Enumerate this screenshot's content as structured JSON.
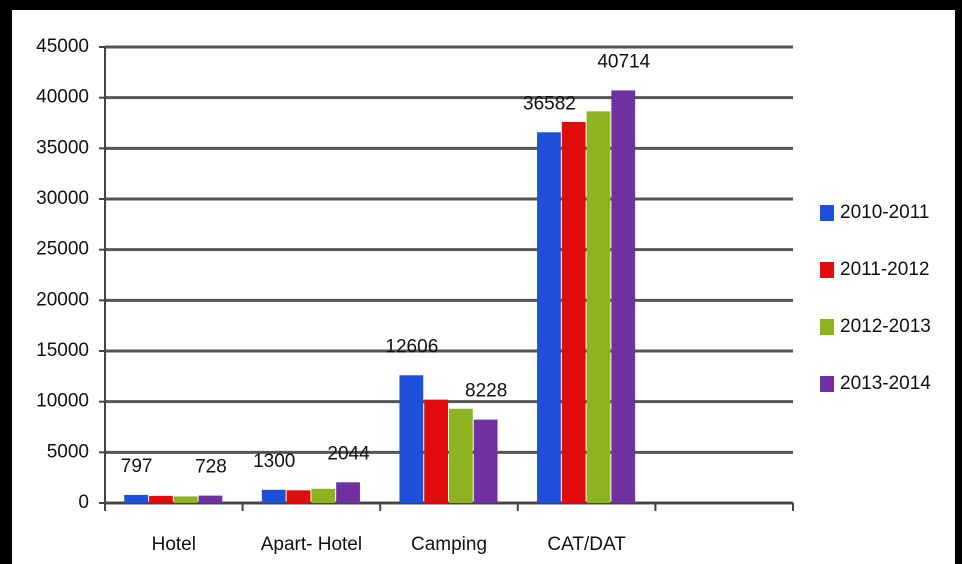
{
  "chart_data": {
    "type": "bar",
    "categories": [
      "Hotel",
      "Apart- Hotel",
      "Camping",
      "CAT/DAT",
      null
    ],
    "series": [
      {
        "name": "2010-2011",
        "color": "#1d4fd8",
        "values": [
          797,
          1300,
          12606,
          36582,
          null
        ],
        "value_labels": [
          "797",
          "1300",
          "12606",
          "36582",
          null
        ]
      },
      {
        "name": "2011-2012",
        "color": "#e10b0b",
        "values": [
          700,
          1250,
          10200,
          37600,
          null
        ],
        "value_labels": [
          null,
          null,
          null,
          null,
          null
        ]
      },
      {
        "name": "2012-2013",
        "color": "#8db320",
        "values": [
          650,
          1400,
          9300,
          38650,
          null
        ],
        "value_labels": [
          null,
          null,
          null,
          null,
          null
        ]
      },
      {
        "name": "2013-2014",
        "color": "#7030a0",
        "values": [
          728,
          2044,
          8228,
          40714,
          null
        ],
        "value_labels": [
          "728",
          "2044",
          "8228",
          "40714",
          null
        ]
      }
    ],
    "ylim": [
      0,
      45000
    ],
    "yticks": [
      0,
      5000,
      10000,
      15000,
      20000,
      25000,
      30000,
      35000,
      40000,
      45000
    ],
    "grid": true,
    "legend": "right"
  }
}
